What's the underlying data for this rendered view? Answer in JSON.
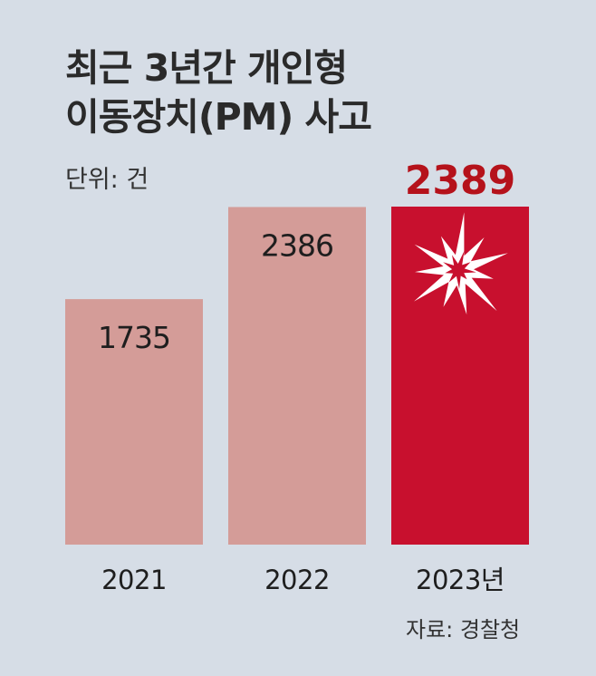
{
  "header": {
    "title_line1": "최근 3년간 개인형",
    "title_line2": "이동장치(PM) 사고",
    "unit": "단위: 건"
  },
  "footer": {
    "source": "자료: 경찰청"
  },
  "colors": {
    "background": "#d6dde6",
    "bar_normal": "#d49c98",
    "bar_highlight": "#c8102e",
    "highlight_label": "#b5121b",
    "burst_outer": "#ffffff",
    "burst_inner": "#c8102e"
  },
  "chart_data": {
    "type": "bar",
    "categories": [
      "2021",
      "2022",
      "2023년"
    ],
    "values": [
      1735,
      2386,
      2389
    ],
    "value_labels": [
      "1735",
      "2386",
      "2389"
    ],
    "highlight_index": 2,
    "ylim": [
      0,
      2389
    ],
    "grid": false,
    "xlabel": "",
    "ylabel": ""
  }
}
